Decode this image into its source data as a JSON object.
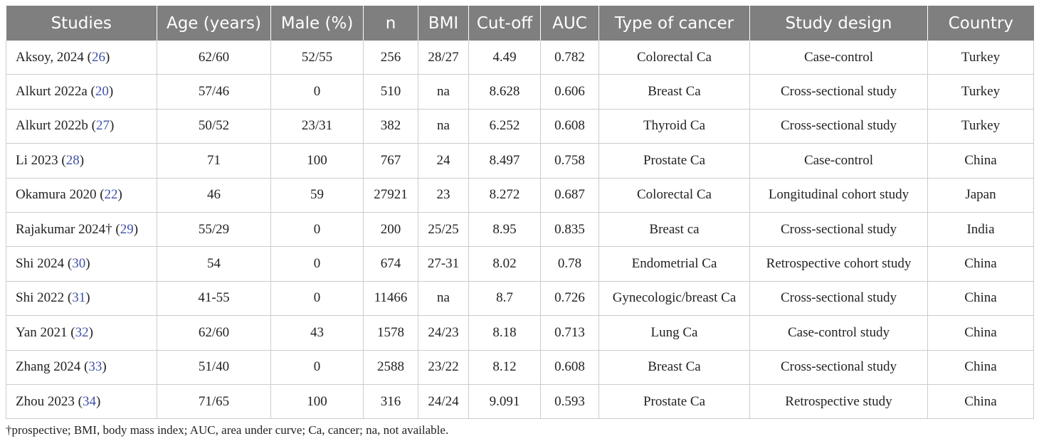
{
  "table": {
    "headers": [
      "Studies",
      "Age (years)",
      "Male (%)",
      "n",
      "BMI",
      "Cut-off",
      "AUC",
      "Type of cancer",
      "Study design",
      "Country"
    ],
    "rows": [
      {
        "study": "Aksoy, 2024",
        "ref": "26",
        "age": "62/60",
        "male": "52/55",
        "n": "256",
        "bmi": "28/27",
        "cutoff": "4.49",
        "auc": "0.782",
        "cancer": "Colorectal Ca",
        "design": "Case-control",
        "country": "Turkey"
      },
      {
        "study": "Alkurt 2022a",
        "ref": "20",
        "age": "57/46",
        "male": "0",
        "n": "510",
        "bmi": "na",
        "cutoff": "8.628",
        "auc": "0.606",
        "cancer": "Breast Ca",
        "design": "Cross-sectional study",
        "country": "Turkey"
      },
      {
        "study": "Alkurt 2022b",
        "ref": "27",
        "age": "50/52",
        "male": "23/31",
        "n": "382",
        "bmi": "na",
        "cutoff": "6.252",
        "auc": "0.608",
        "cancer": "Thyroid Ca",
        "design": "Cross-sectional study",
        "country": "Turkey"
      },
      {
        "study": "Li 2023",
        "ref": "28",
        "age": "71",
        "male": "100",
        "n": "767",
        "bmi": "24",
        "cutoff": "8.497",
        "auc": "0.758",
        "cancer": "Prostate Ca",
        "design": "Case-control",
        "country": "China"
      },
      {
        "study": "Okamura 2020",
        "ref": "22",
        "age": "46",
        "male": "59",
        "n": "27921",
        "bmi": "23",
        "cutoff": "8.272",
        "auc": "0.687",
        "cancer": "Colorectal Ca",
        "design": "Longitudinal cohort study",
        "country": "Japan"
      },
      {
        "study": "Rajakumar 2024†",
        "ref": "29",
        "age": "55/29",
        "male": "0",
        "n": "200",
        "bmi": "25/25",
        "cutoff": "8.95",
        "auc": "0.835",
        "cancer": "Breast ca",
        "design": "Cross-sectional study",
        "country": "India"
      },
      {
        "study": "Shi 2024",
        "ref": "30",
        "age": "54",
        "male": "0",
        "n": "674",
        "bmi": "27-31",
        "cutoff": "8.02",
        "auc": "0.78",
        "cancer": "Endometrial Ca",
        "design": "Retrospective cohort study",
        "country": "China"
      },
      {
        "study": "Shi 2022",
        "ref": "31",
        "age": "41-55",
        "male": "0",
        "n": "11466",
        "bmi": "na",
        "cutoff": "8.7",
        "auc": "0.726",
        "cancer": "Gynecologic/breast Ca",
        "design": "Cross-sectional study",
        "country": "China"
      },
      {
        "study": "Yan 2021",
        "ref": "32",
        "age": "62/60",
        "male": "43",
        "n": "1578",
        "bmi": "24/23",
        "cutoff": "8.18",
        "auc": "0.713",
        "cancer": "Lung Ca",
        "design": "Case-control study",
        "country": "China"
      },
      {
        "study": "Zhang 2024",
        "ref": "33",
        "age": "51/40",
        "male": "0",
        "n": "2588",
        "bmi": "23/22",
        "cutoff": "8.12",
        "auc": "0.608",
        "cancer": "Breast Ca",
        "design": "Cross-sectional study",
        "country": "China"
      },
      {
        "study": "Zhou 2023",
        "ref": "34",
        "age": "71/65",
        "male": "100",
        "n": "316",
        "bmi": "24/24",
        "cutoff": "9.091",
        "auc": "0.593",
        "cancer": "Prostate Ca",
        "design": "Retrospective study",
        "country": "China"
      }
    ]
  },
  "footnote": "†prospective; BMI, body mass index; AUC, area under curve; Ca, cancer; na, not available.",
  "colors": {
    "header_bg": "#7f7f7f",
    "header_text": "#ffffff",
    "ref_link": "#3f51a8",
    "grid": "#cccccc"
  }
}
